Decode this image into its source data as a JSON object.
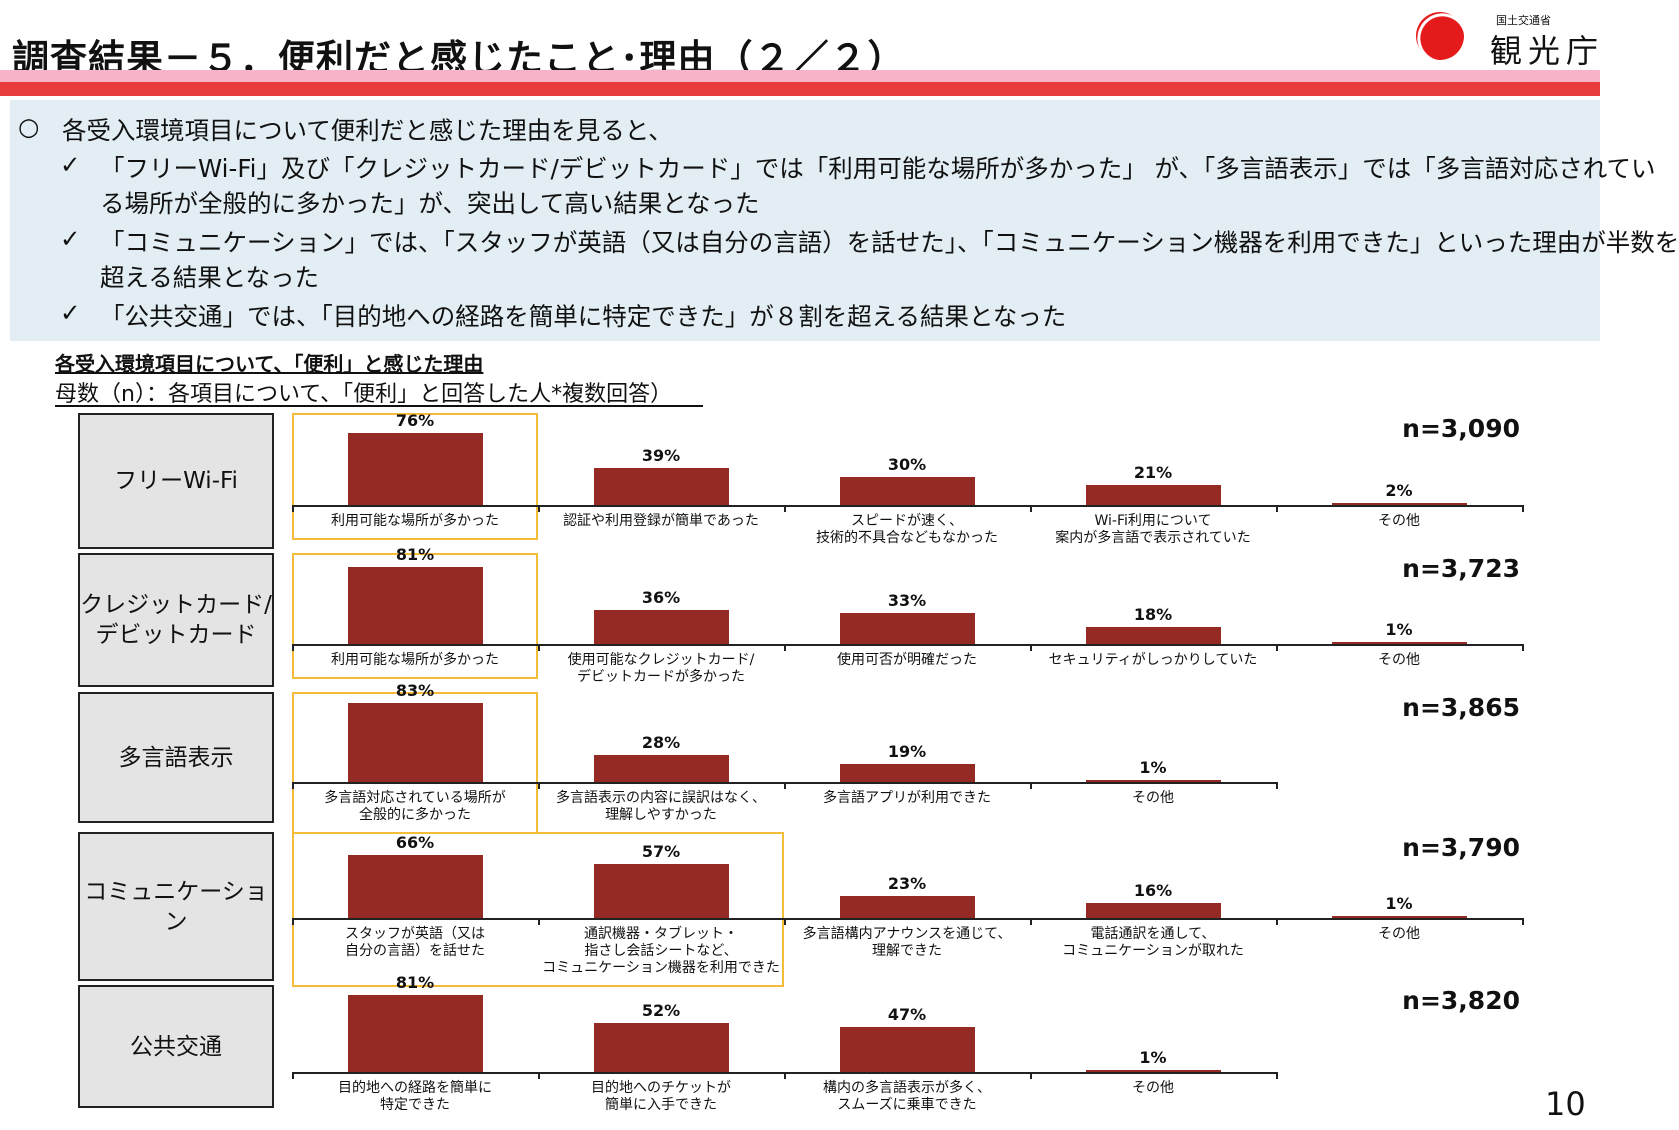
{
  "header": {
    "title": "調査結果－５．便利だと感じたこと･理由（２／２）",
    "logo_small": "国土交通省",
    "logo_big": "観光庁"
  },
  "summary": {
    "bullet": "○",
    "check": "✓",
    "lines": [
      "各受入環境項目について便利だと感じた理由を見ると、",
      "「フリーWi-Fi」及び「クレジットカード/デビットカード」では「利用可能な場所が多かった」 が、「多言語表示」では「多言語対応されてい",
      "る場所が全般的に多かった」が、突出して高い結果となった",
      "「コミュニケーション」では、「スタッフが英語（又は自分の言語）を話せた」、「コミュニケーション機器を利用できた」といった理由が半数を",
      "超える結果となった",
      "「公共交通」では、「目的地への経路を簡単に特定できた」が８割を超える結果となった"
    ]
  },
  "chart_title": "各受入環境項目について、「便利」と感じた理由",
  "chart_subtitle": "母数（n）：各項目について、「便利」と回答した人*複数回答）",
  "page_number": "10",
  "colors": {
    "bar": "#952a24",
    "highlight": "#f5bc3a",
    "category_bg": "#e4e4e4",
    "summary_bg": "#e2eef3",
    "accent_red": "#e83b3b"
  },
  "chart_data": [
    {
      "type": "bar",
      "category": "フリーWi-Fi",
      "n": "n=3,090",
      "categories": [
        "利用可能な場所が多かった",
        "認証や利用登録が簡単であった",
        "スピードが速く、\n技術的不具合などもなかった",
        "Wi-Fi利用について\n案内が多言語で表示されていた",
        "その他"
      ],
      "values": [
        76,
        39,
        30,
        21,
        2
      ],
      "labels": [
        "76%",
        "39%",
        "30%",
        "21%",
        "2%"
      ],
      "highlighted": [
        0
      ]
    },
    {
      "type": "bar",
      "category": "クレジットカード/\nデビットカード",
      "n": "n=3,723",
      "categories": [
        "利用可能な場所が多かった",
        "使用可能なクレジットカード/\nデビットカードが多かった",
        "使用可否が明確だった",
        "セキュリティがしっかりしていた",
        "その他"
      ],
      "values": [
        81,
        36,
        33,
        18,
        1
      ],
      "labels": [
        "81%",
        "36%",
        "33%",
        "18%",
        "1%"
      ],
      "highlighted": [
        0
      ]
    },
    {
      "type": "bar",
      "category": "多言語表示",
      "n": "n=3,865",
      "categories": [
        "多言語対応されている場所が\n全般的に多かった",
        "多言語表示の内容に誤訳はなく、\n理解しやすかった",
        "多言語アプリが利用できた",
        "その他"
      ],
      "values": [
        83,
        28,
        19,
        1
      ],
      "labels": [
        "83%",
        "28%",
        "19%",
        "1%"
      ],
      "highlighted": [
        0
      ]
    },
    {
      "type": "bar",
      "category": "コミュニケーション",
      "n": "n=3,790",
      "categories": [
        "スタッフが英語（又は\n自分の言語）を話せた",
        "通訳機器・タブレット・\n指さし会話シートなど、\nコミュニケーション機器を利用できた",
        "多言語構内アナウンスを通じて、\n理解できた",
        "電話通訳を通して、\nコミュニケーションが取れた",
        "その他"
      ],
      "values": [
        66,
        57,
        23,
        16,
        1
      ],
      "labels": [
        "66%",
        "57%",
        "23%",
        "16%",
        "1%"
      ],
      "highlighted": [
        0,
        1
      ]
    },
    {
      "type": "bar",
      "category": "公共交通",
      "n": "n=3,820",
      "categories": [
        "目的地への経路を簡単に\n特定できた",
        "目的地へのチケットが\n簡単に入手できた",
        "構内の多言語表示が多く、\nスムーズに乗車できた",
        "その他"
      ],
      "values": [
        81,
        52,
        47,
        1
      ],
      "labels": [
        "81%",
        "52%",
        "47%",
        "1%"
      ],
      "highlighted": []
    }
  ]
}
